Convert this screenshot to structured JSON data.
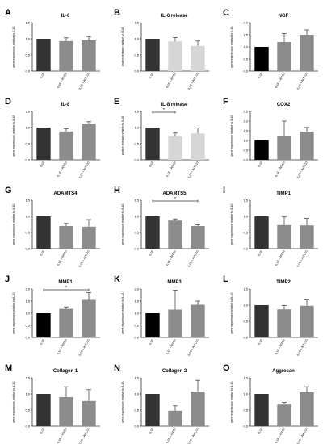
{
  "colors": {
    "dark": "#333333",
    "black": "#000000",
    "mid": "#8c8c8c",
    "light": "#d6d6d6",
    "axis": "#333333"
  },
  "ylabel_gene": "gene expression relative to IL1ß",
  "ylabel_protein": "protein release relative to IL1ß",
  "chart_data": [
    {
      "letter": "A",
      "title": "IL-6",
      "type": "bar",
      "ylabel": "gene expression relative to IL1ß",
      "ylim": [
        0,
        1.5
      ],
      "yticks": [
        "0.0",
        "0.5",
        "1.0",
        "1.5"
      ],
      "categories": [
        "IL1ß",
        "IL1ß + AITC3",
        "IL1ß + AITC10"
      ],
      "values": [
        1.0,
        0.93,
        0.95
      ],
      "errors": [
        0,
        0.1,
        0.12
      ],
      "bar_colors": [
        "#333333",
        "#8c8c8c",
        "#8c8c8c"
      ],
      "significance": []
    },
    {
      "letter": "B",
      "title": "IL-6 release",
      "type": "bar",
      "ylabel": "protein release relative to IL1ß",
      "ylim": [
        0,
        1.5
      ],
      "yticks": [
        "0.0",
        "0.5",
        "1.0",
        "1.5"
      ],
      "categories": [
        "IL1ß",
        "IL1ß + AITC3",
        "IL1ß + AITC10"
      ],
      "values": [
        1.0,
        0.92,
        0.78
      ],
      "errors": [
        0,
        0.12,
        0.15
      ],
      "bar_colors": [
        "#333333",
        "#d6d6d6",
        "#d6d6d6"
      ],
      "significance": []
    },
    {
      "letter": "C",
      "title": "NGF",
      "type": "bar",
      "ylabel": "gene expression relative to IL1ß",
      "ylim": [
        0,
        2.0
      ],
      "yticks": [
        "0.0",
        "0.5",
        "1.0",
        "1.5",
        "2.0"
      ],
      "categories": [
        "IL1ß",
        "IL1ß + AITC3",
        "IL1ß + AITC10"
      ],
      "values": [
        1.0,
        1.2,
        1.5
      ],
      "errors": [
        0,
        0.35,
        0.2
      ],
      "bar_colors": [
        "#000000",
        "#8c8c8c",
        "#8c8c8c"
      ],
      "significance": []
    },
    {
      "letter": "D",
      "title": "IL-8",
      "type": "bar",
      "ylabel": "gene expression relative to IL1ß",
      "ylim": [
        0,
        1.5
      ],
      "yticks": [
        "0.0",
        "0.5",
        "1.0",
        "1.5"
      ],
      "categories": [
        "IL1ß",
        "IL1ß + AITC3",
        "IL1ß + AITC10"
      ],
      "values": [
        1.0,
        0.88,
        1.12
      ],
      "errors": [
        0,
        0.08,
        0.06
      ],
      "bar_colors": [
        "#333333",
        "#8c8c8c",
        "#8c8c8c"
      ],
      "significance": []
    },
    {
      "letter": "E",
      "title": "IL-8 release",
      "type": "bar",
      "ylabel": "protein release relative to IL1ß",
      "ylim": [
        0,
        1.5
      ],
      "yticks": [
        "0.0",
        "0.5",
        "1.0",
        "1.5"
      ],
      "categories": [
        "IL1ß",
        "IL1ß + AITC3",
        "IL1ß + AITC10"
      ],
      "values": [
        1.0,
        0.73,
        0.82
      ],
      "errors": [
        0,
        0.1,
        0.17
      ],
      "bar_colors": [
        "#333333",
        "#d6d6d6",
        "#d6d6d6"
      ],
      "significance": [
        {
          "from": 0,
          "to": 1,
          "label": "*"
        }
      ]
    },
    {
      "letter": "F",
      "title": "COX2",
      "type": "bar",
      "ylabel": "gene expression relative to IL1ß",
      "ylim": [
        0,
        2.5
      ],
      "yticks": [
        "0.0",
        "0.5",
        "1.0",
        "1.5",
        "2.0",
        "2.5"
      ],
      "categories": [
        "IL1ß",
        "IL1ß + AITC3",
        "IL1ß + AITC10"
      ],
      "values": [
        1.0,
        1.25,
        1.45
      ],
      "errors": [
        0,
        0.75,
        0.22
      ],
      "bar_colors": [
        "#000000",
        "#8c8c8c",
        "#8c8c8c"
      ],
      "significance": []
    },
    {
      "letter": "G",
      "title": "ADAMTS4",
      "type": "bar",
      "ylabel": "gene expression relative to IL1ß",
      "ylim": [
        0,
        1.5
      ],
      "yticks": [
        "0.0",
        "0.5",
        "1.0",
        "1.5"
      ],
      "categories": [
        "IL1ß",
        "IL1ß + AITC3",
        "IL1ß + AITC10"
      ],
      "values": [
        1.0,
        0.7,
        0.68
      ],
      "errors": [
        0,
        0.08,
        0.22
      ],
      "bar_colors": [
        "#333333",
        "#8c8c8c",
        "#8c8c8c"
      ],
      "significance": []
    },
    {
      "letter": "H",
      "title": "ADAMTS5",
      "type": "bar",
      "ylabel": "gene expression relative to IL1ß",
      "ylim": [
        0,
        1.5
      ],
      "yticks": [
        "0.0",
        "0.5",
        "1.0",
        "1.5"
      ],
      "categories": [
        "IL1ß",
        "IL1ß + AITC3",
        "IL1ß + AITC10"
      ],
      "values": [
        1.0,
        0.87,
        0.7
      ],
      "errors": [
        0,
        0.05,
        0.04
      ],
      "bar_colors": [
        "#333333",
        "#8c8c8c",
        "#8c8c8c"
      ],
      "significance": [
        {
          "from": 0,
          "to": 2,
          "label": "*"
        }
      ]
    },
    {
      "letter": "I",
      "title": "TIMP1",
      "type": "bar",
      "ylabel": "gene expression relative to IL1ß",
      "ylim": [
        0,
        1.5
      ],
      "yticks": [
        "0.0",
        "0.5",
        "1.0",
        "1.5"
      ],
      "categories": [
        "IL1ß",
        "IL1ß + AITC3",
        "IL1ß + AITC10"
      ],
      "values": [
        1.0,
        0.73,
        0.72
      ],
      "errors": [
        0,
        0.25,
        0.22
      ],
      "bar_colors": [
        "#333333",
        "#8c8c8c",
        "#8c8c8c"
      ],
      "significance": []
    },
    {
      "letter": "J",
      "title": "MMP1",
      "type": "bar",
      "ylabel": "gene expression relative to IL1ß",
      "ylim": [
        0,
        2.0
      ],
      "yticks": [
        "0.0",
        "0.5",
        "1.0",
        "1.5",
        "2.0"
      ],
      "categories": [
        "IL1ß",
        "IL1ß + AITC3",
        "IL1ß + AITC10"
      ],
      "values": [
        1.0,
        1.18,
        1.55
      ],
      "errors": [
        0,
        0.08,
        0.3
      ],
      "bar_colors": [
        "#000000",
        "#8c8c8c",
        "#8c8c8c"
      ],
      "significance": [
        {
          "from": 0,
          "to": 2,
          "label": "*"
        }
      ]
    },
    {
      "letter": "K",
      "title": "MMP3",
      "type": "bar",
      "ylabel": "gene expression relative to IL1ß",
      "ylim": [
        0,
        2.0
      ],
      "yticks": [
        "0.0",
        "0.5",
        "1.0",
        "1.5",
        "2.0"
      ],
      "categories": [
        "IL1ß",
        "IL1ß + AITC3",
        "IL1ß + AITC10"
      ],
      "values": [
        1.0,
        1.15,
        1.35
      ],
      "errors": [
        0,
        0.8,
        0.15
      ],
      "bar_colors": [
        "#000000",
        "#8c8c8c",
        "#8c8c8c"
      ],
      "significance": []
    },
    {
      "letter": "L",
      "title": "TIMP2",
      "type": "bar",
      "ylabel": "gene expression relative to IL1ß",
      "ylim": [
        0,
        1.5
      ],
      "yticks": [
        "0.0",
        "0.5",
        "1.0",
        "1.5"
      ],
      "categories": [
        "IL1ß",
        "IL1ß + AITC3",
        "IL1ß + AITC10"
      ],
      "values": [
        1.0,
        0.87,
        0.98
      ],
      "errors": [
        0,
        0.12,
        0.18
      ],
      "bar_colors": [
        "#333333",
        "#8c8c8c",
        "#8c8c8c"
      ],
      "significance": []
    },
    {
      "letter": "M",
      "title": "Collagen 1",
      "type": "bar",
      "ylabel": "gene expression relative to IL1ß",
      "ylim": [
        0,
        1.5
      ],
      "yticks": [
        "0.0",
        "0.5",
        "1.0",
        "1.5"
      ],
      "categories": [
        "IL1ß",
        "IL1ß + AITC3",
        "IL1ß + AITC10"
      ],
      "values": [
        1.0,
        0.9,
        0.78
      ],
      "errors": [
        0,
        0.32,
        0.35
      ],
      "bar_colors": [
        "#333333",
        "#8c8c8c",
        "#8c8c8c"
      ],
      "significance": []
    },
    {
      "letter": "N",
      "title": "Collagen 2",
      "type": "bar",
      "ylabel": "gene expression relative to IL1ß",
      "ylim": [
        0,
        1.5
      ],
      "yticks": [
        "0.0",
        "0.5",
        "1.0",
        "1.5"
      ],
      "categories": [
        "IL1ß",
        "IL1ß + AITC3",
        "IL1ß + AITC10"
      ],
      "values": [
        1.0,
        0.48,
        1.07
      ],
      "errors": [
        0,
        0.15,
        0.35
      ],
      "bar_colors": [
        "#333333",
        "#8c8c8c",
        "#8c8c8c"
      ],
      "significance": []
    },
    {
      "letter": "O",
      "title": "Aggrecan",
      "type": "bar",
      "ylabel": "gene expression relative to IL1ß",
      "ylim": [
        0,
        1.5
      ],
      "yticks": [
        "0.0",
        "0.5",
        "1.0",
        "1.5"
      ],
      "categories": [
        "IL1ß",
        "IL1ß + AITC3",
        "IL1ß + AITC10"
      ],
      "values": [
        1.0,
        0.67,
        1.05
      ],
      "errors": [
        0,
        0.07,
        0.17
      ],
      "bar_colors": [
        "#333333",
        "#8c8c8c",
        "#8c8c8c"
      ],
      "significance": []
    }
  ]
}
